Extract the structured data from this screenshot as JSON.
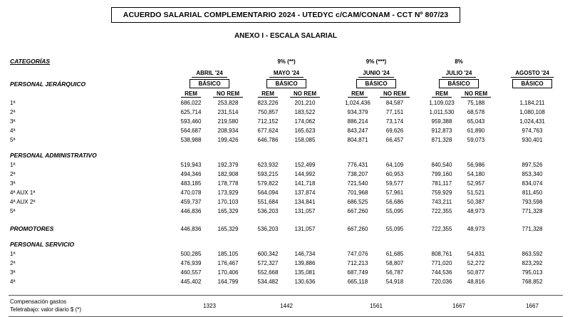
{
  "header": {
    "title": "ACUERDO SALARIAL COMPLEMENTARIO 2024 - UTEDYC c/CAM/CONAM - CCT Nº 807/23",
    "subtitle": "ANEXO I - ESCALA SALARIAL"
  },
  "table": {
    "categories_label": "CATEGORÍAS",
    "percent_labels": [
      "",
      "9% (**)",
      "9% (***)",
      "8%",
      ""
    ],
    "months": [
      "ABRIL '24",
      "MAYO '24",
      "JUNIO '24",
      "JULIO '24",
      "AGOSTO '24"
    ],
    "basico_label": "BÁSICO",
    "subheaders": [
      "REM",
      "NO REM"
    ],
    "sections": [
      {
        "name": "PERSONAL JERÁRQUICO",
        "rows": [
          {
            "label": "1ª",
            "values": [
              "686,022",
              "253,828",
              "823,226",
              "201,210",
              "1,024,436",
              "84,587",
              "1,109,023",
              "75,188",
              "1,184,211"
            ]
          },
          {
            "label": "2ª",
            "values": [
              "625,714",
              "231,514",
              "750,857",
              "183,522",
              "934,379",
              "77,151",
              "1,011,530",
              "68,578",
              "1,080,108"
            ]
          },
          {
            "label": "3ª",
            "values": [
              "593,460",
              "219,580",
              "712,152",
              "174,062",
              "886,214",
              "73,174",
              "959,388",
              "65,043",
              "1,024,431"
            ]
          },
          {
            "label": "4ª",
            "values": [
              "564,687",
              "208,934",
              "677,624",
              "165,623",
              "843,247",
              "69,626",
              "912,873",
              "61,890",
              "974,763"
            ]
          },
          {
            "label": "5ª",
            "values": [
              "538,988",
              "199,426",
              "646,786",
              "158,085",
              "804,871",
              "66,457",
              "871,328",
              "59,073",
              "930,401"
            ]
          }
        ]
      },
      {
        "name": "PERSONAL ADMINISTRATIVO",
        "rows": [
          {
            "label": "1ª",
            "values": [
              "519,943",
              "192,379",
              "623,932",
              "152,499",
              "776,431",
              "64,109",
              "840,540",
              "56,986",
              "897,526"
            ]
          },
          {
            "label": "2ª",
            "values": [
              "494,346",
              "182,908",
              "593,215",
              "144,992",
              "738,207",
              "60,953",
              "799,160",
              "54,180",
              "853,340"
            ]
          },
          {
            "label": "3ª",
            "values": [
              "483,185",
              "178,778",
              "579,822",
              "141,718",
              "721,540",
              "59,577",
              "781,117",
              "52,957",
              "834,074"
            ]
          },
          {
            "label": "4ª AUX 1ª",
            "values": [
              "470,078",
              "173,929",
              "564,094",
              "137,874",
              "701,968",
              "57,961",
              "759,929",
              "51,521",
              "811,450"
            ]
          },
          {
            "label": "4ª AUX 2ª",
            "values": [
              "459,737",
              "170,103",
              "551,684",
              "134,841",
              "686,525",
              "56,686",
              "743,211",
              "50,387",
              "793,598"
            ]
          },
          {
            "label": "5ª",
            "values": [
              "446,836",
              "165,329",
              "536,203",
              "131,057",
              "667,260",
              "55,095",
              "722,355",
              "48,973",
              "771,328"
            ]
          }
        ]
      },
      {
        "name": "PROMOTORES",
        "inline_values": [
          "446,836",
          "165,329",
          "536,203",
          "131,057",
          "667,260",
          "55,095",
          "722,355",
          "48,973",
          "771,328"
        ],
        "rows": []
      },
      {
        "name": "PERSONAL SERVICIO",
        "rows": [
          {
            "label": "1ª",
            "values": [
              "500,285",
              "185,105",
              "600,342",
              "146,734",
              "747,076",
              "61,685",
              "808,761",
              "54,831",
              "863,592"
            ]
          },
          {
            "label": "2ª",
            "values": [
              "476,939",
              "176,467",
              "572,327",
              "139,886",
              "712,213",
              "58,807",
              "771,020",
              "52,272",
              "823,292"
            ]
          },
          {
            "label": "3ª",
            "values": [
              "460,557",
              "170,406",
              "552,668",
              "135,081",
              "687,749",
              "56,787",
              "744,536",
              "50,877",
              "795,013"
            ]
          },
          {
            "label": "4ª",
            "values": [
              "445,402",
              "164,799",
              "534,482",
              "130,636",
              "665,118",
              "54,918",
              "720,036",
              "48,816",
              "768,852"
            ]
          }
        ]
      }
    ],
    "footer": {
      "label_lines": [
        "Compensación gastos",
        "Teletrabajo: valor diario $ (*)"
      ],
      "values": [
        "1323",
        "1442",
        "1561",
        "1667",
        "1667"
      ]
    }
  }
}
